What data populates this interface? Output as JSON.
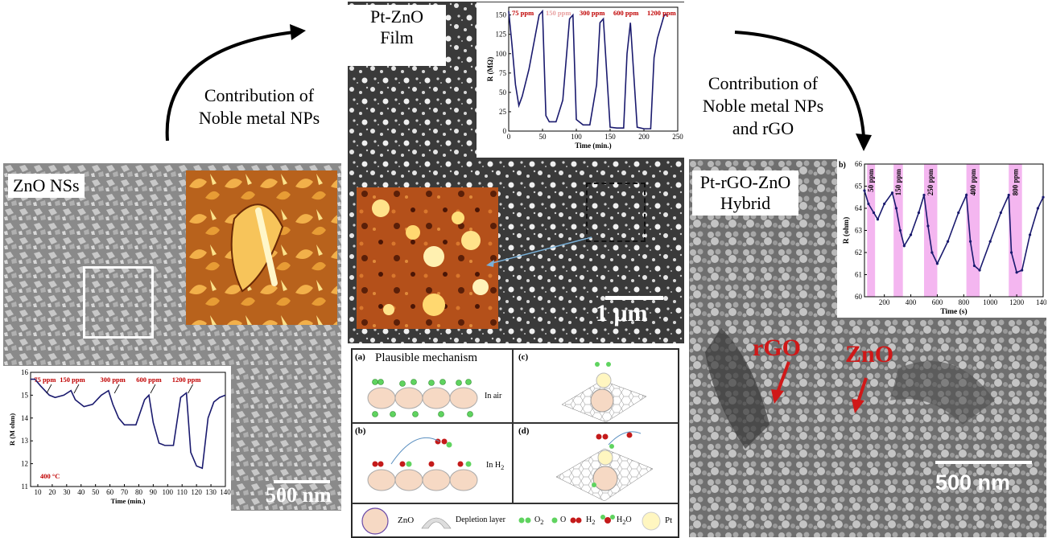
{
  "top_labels": {
    "pt_zno_film": [
      "Pt-ZnO",
      "Film"
    ],
    "contrib_left": [
      "Contribution of",
      "Noble metal NPs"
    ],
    "contrib_right": [
      "Contribution of",
      "Noble metal NPs",
      "and rGO"
    ],
    "zno_nss": "ZnO NSs",
    "pt_rgo_zno": [
      "Pt-rGO-ZnO",
      "Hybrid"
    ]
  },
  "scale_bars": {
    "left": "500 nm",
    "middle": "1 μm",
    "right": "500 nm"
  },
  "annotations": {
    "rgo": "rGO",
    "zno": "ZnO"
  },
  "colors": {
    "trace_dark_blue": "#1a1a6e",
    "ppm_red": "#c00000",
    "highlight_pink": "#f4b6f0",
    "afm_orange": "#c0561c",
    "arrow_red": "#d01818"
  },
  "chart_data": [
    {
      "type": "line",
      "name_ref": "left_chart",
      "ylabel": "R (M ohm)",
      "xlabel": "Time (min.)",
      "xlim": [
        5,
        140
      ],
      "ylim": [
        11,
        16
      ],
      "xticks": [
        "10",
        "20",
        "30",
        "40",
        "50",
        "60",
        "70",
        "80",
        "90",
        "100",
        "110",
        "120",
        "130",
        "140"
      ],
      "yticks": [
        "11",
        "12",
        "13",
        "14",
        "15",
        "16"
      ],
      "annotations": [
        "75 ppm",
        "150 ppm",
        "300 ppm",
        "600 ppm",
        "1200 ppm"
      ],
      "annotation_x": [
        15,
        34,
        62,
        87,
        113
      ],
      "temperature_label": "400 °C",
      "x": [
        5,
        8,
        12,
        18,
        22,
        28,
        33,
        36,
        42,
        48,
        54,
        59,
        62,
        66,
        70,
        78,
        84,
        87,
        90,
        94,
        98,
        104,
        109,
        113,
        116,
        120,
        124,
        128,
        132,
        136,
        140
      ],
      "y": [
        15.7,
        15.7,
        15.4,
        15.0,
        14.9,
        15.0,
        15.2,
        14.8,
        14.5,
        14.6,
        15.0,
        15.2,
        14.6,
        14.0,
        13.7,
        13.7,
        14.8,
        15.0,
        13.8,
        12.9,
        12.8,
        12.8,
        14.9,
        15.1,
        12.5,
        11.9,
        11.8,
        14.0,
        14.7,
        14.9,
        15.0
      ]
    },
    {
      "type": "line",
      "name_ref": "top_chart",
      "ylabel": "R (MΩ)",
      "xlabel": "Time (min.)",
      "xlim": [
        0,
        250
      ],
      "ylim": [
        0,
        160
      ],
      "xticks": [
        "0",
        "50",
        "100",
        "150",
        "200",
        "250"
      ],
      "yticks": [
        "0",
        "25",
        "50",
        "75",
        "100",
        "125",
        "150"
      ],
      "annotations": [
        "75 ppm",
        "150 ppm",
        "300 ppm",
        "600 ppm",
        "1200 ppm"
      ],
      "x": [
        0,
        5,
        10,
        15,
        20,
        30,
        45,
        50,
        55,
        60,
        70,
        80,
        90,
        95,
        100,
        110,
        120,
        130,
        135,
        140,
        150,
        160,
        170,
        175,
        180,
        190,
        200,
        210,
        215,
        220,
        230,
        235
      ],
      "y": [
        155,
        110,
        60,
        33,
        45,
        80,
        150,
        155,
        20,
        12,
        12,
        40,
        145,
        150,
        15,
        8,
        8,
        60,
        140,
        145,
        5,
        4,
        4,
        100,
        140,
        5,
        3,
        3,
        95,
        120,
        150,
        150
      ]
    },
    {
      "type": "line",
      "name_ref": "right_chart",
      "panel_label": "b)",
      "ylabel": "R (ohm)",
      "xlabel": "Time (s)",
      "xlim": [
        50,
        1400
      ],
      "ylim": [
        60,
        66
      ],
      "xticks": [
        "200",
        "400",
        "600",
        "800",
        "1000",
        "1200",
        "1400"
      ],
      "yticks": [
        "60",
        "61",
        "62",
        "63",
        "64",
        "65",
        "66"
      ],
      "highlight_bands": [
        [
          70,
          130
        ],
        [
          270,
          340
        ],
        [
          500,
          600
        ],
        [
          820,
          920
        ],
        [
          1140,
          1240
        ]
      ],
      "annotations": [
        "50 ppm",
        "150 ppm",
        "250 ppm",
        "400 ppm",
        "800 ppm"
      ],
      "x": [
        50,
        80,
        120,
        150,
        200,
        260,
        290,
        320,
        350,
        400,
        460,
        500,
        530,
        560,
        600,
        680,
        760,
        820,
        850,
        880,
        920,
        1000,
        1080,
        1140,
        1160,
        1200,
        1240,
        1300,
        1360,
        1400
      ],
      "y": [
        64.8,
        64.2,
        63.8,
        63.5,
        64.2,
        64.7,
        64.0,
        63.0,
        62.3,
        62.8,
        63.8,
        64.6,
        63.2,
        62.0,
        61.5,
        62.5,
        63.8,
        64.6,
        62.5,
        61.4,
        61.2,
        62.5,
        63.8,
        64.6,
        62.0,
        61.1,
        61.2,
        62.8,
        64.0,
        64.5
      ]
    }
  ],
  "mechanism": {
    "title": "Plausible mechanism",
    "panels": [
      "(a)",
      "(b)",
      "(c)",
      "(d)"
    ],
    "in_air": "In air",
    "in_h2": "In H",
    "h2_sub": "2",
    "electron": "e",
    "legend": {
      "zno": "ZnO",
      "depletion": "Depletion layer",
      "o2": "O",
      "o2_sub": "2",
      "o": "O",
      "h2": "H",
      "h2_sub": "2",
      "h2o": "H",
      "h2o_sub": "2",
      "h2o_tail": "O",
      "pt": "Pt"
    }
  }
}
